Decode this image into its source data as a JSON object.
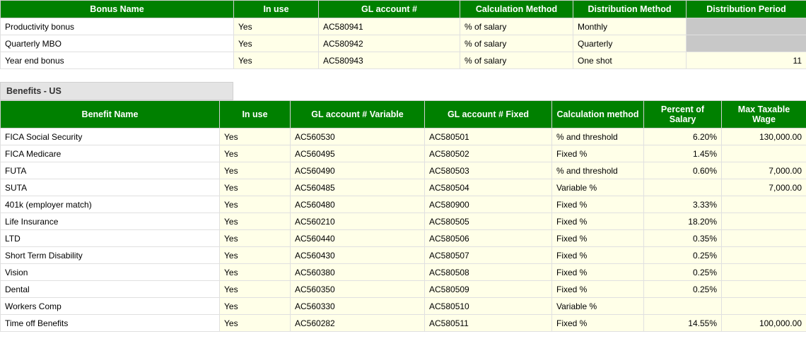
{
  "bonus": {
    "headers": {
      "name": "Bonus Name",
      "in_use": "In use",
      "gl": "GL account #",
      "calc": "Calculation Method",
      "dist": "Distribution Method",
      "period": "Distribution Period"
    },
    "rows": [
      {
        "name": "Productivity bonus",
        "in_use": "Yes",
        "gl": "AC580941",
        "calc": "% of salary",
        "dist": "Monthly",
        "period": "",
        "period_disabled": true
      },
      {
        "name": "Quarterly MBO",
        "in_use": "Yes",
        "gl": "AC580942",
        "calc": "% of salary",
        "dist": "Quarterly",
        "period": "",
        "period_disabled": true
      },
      {
        "name": "Year end bonus",
        "in_use": "Yes",
        "gl": "AC580943",
        "calc": "% of salary",
        "dist": "One shot",
        "period": "11",
        "period_disabled": false
      }
    ]
  },
  "benefits": {
    "section_title": "Benefits - US",
    "headers": {
      "name": "Benefit Name",
      "in_use": "In use",
      "gl_var": "GL account # Variable",
      "gl_fix": "GL account # Fixed",
      "calc": "Calculation method",
      "pct": "Percent of Salary",
      "max": "Max Taxable Wage"
    },
    "rows": [
      {
        "name": "FICA Social Security",
        "in_use": "Yes",
        "gl_var": "AC560530",
        "gl_fix": "AC580501",
        "calc": "% and threshold",
        "pct": "6.20%",
        "max": "130,000.00"
      },
      {
        "name": "FICA Medicare",
        "in_use": "Yes",
        "gl_var": "AC560495",
        "gl_fix": "AC580502",
        "calc": "Fixed %",
        "pct": "1.45%",
        "max": ""
      },
      {
        "name": "FUTA",
        "in_use": "Yes",
        "gl_var": "AC560490",
        "gl_fix": "AC580503",
        "calc": "% and threshold",
        "pct": "0.60%",
        "max": "7,000.00"
      },
      {
        "name": "SUTA",
        "in_use": "Yes",
        "gl_var": "AC560485",
        "gl_fix": "AC580504",
        "calc": "Variable %",
        "pct": "",
        "max": "7,000.00"
      },
      {
        "name": "401k (employer match)",
        "in_use": "Yes",
        "gl_var": "AC560480",
        "gl_fix": "AC580900",
        "calc": "Fixed %",
        "pct": "3.33%",
        "max": ""
      },
      {
        "name": "Life Insurance",
        "in_use": "Yes",
        "gl_var": "AC560210",
        "gl_fix": "AC580505",
        "calc": "Fixed %",
        "pct": "18.20%",
        "max": ""
      },
      {
        "name": "LTD",
        "in_use": "Yes",
        "gl_var": "AC560440",
        "gl_fix": "AC580506",
        "calc": "Fixed %",
        "pct": "0.35%",
        "max": ""
      },
      {
        "name": "Short Term Disability",
        "in_use": "Yes",
        "gl_var": "AC560430",
        "gl_fix": "AC580507",
        "calc": "Fixed %",
        "pct": "0.25%",
        "max": ""
      },
      {
        "name": "Vision",
        "in_use": "Yes",
        "gl_var": "AC560380",
        "gl_fix": "AC580508",
        "calc": "Fixed %",
        "pct": "0.25%",
        "max": ""
      },
      {
        "name": "Dental",
        "in_use": "Yes",
        "gl_var": "AC560350",
        "gl_fix": "AC580509",
        "calc": "Fixed %",
        "pct": "0.25%",
        "max": ""
      },
      {
        "name": "Workers Comp",
        "in_use": "Yes",
        "gl_var": "AC560330",
        "gl_fix": "AC580510",
        "calc": "Variable %",
        "pct": "",
        "max": ""
      },
      {
        "name": "Time off Benefits",
        "in_use": "Yes",
        "gl_var": "AC560282",
        "gl_fix": "AC580511",
        "calc": "Fixed %",
        "pct": "14.55%",
        "max": "100,000.00"
      }
    ]
  },
  "col_widths": {
    "bonus": [
      330,
      120,
      200,
      160,
      160,
      170
    ],
    "benefits": [
      310,
      100,
      190,
      180,
      130,
      110,
      120
    ]
  },
  "colors": {
    "header_bg": "#008000",
    "header_fg": "#ffffff",
    "cell_bg": "#ffffe8",
    "name_bg": "#ffffff",
    "disabled_bg": "#c8c8c8",
    "section_bg": "#e4e4e4",
    "border": "#e0e0e0"
  }
}
